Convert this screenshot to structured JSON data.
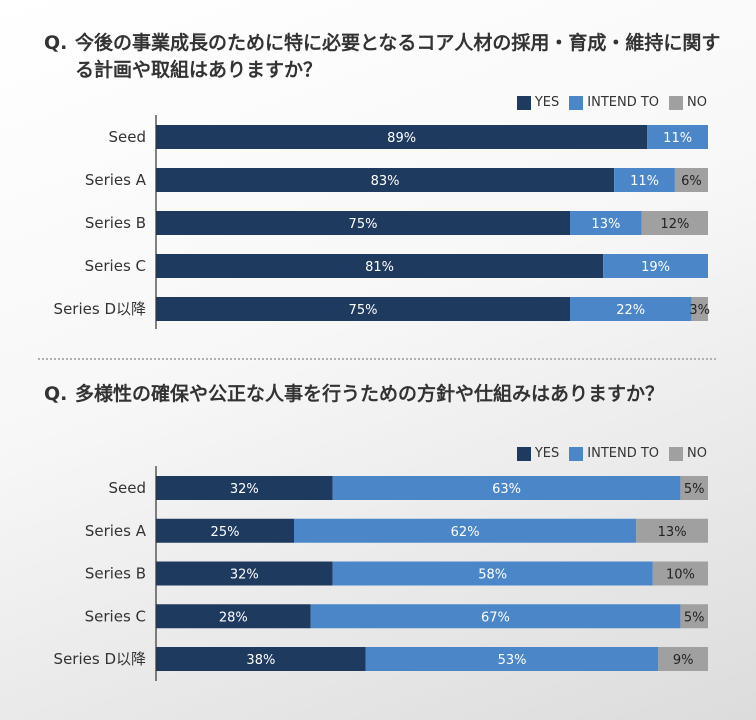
{
  "legend": {
    "yes": "YES",
    "intend": "INTEND TO",
    "no": "NO"
  },
  "colors": {
    "yes": "#1f3a5f",
    "intend": "#4a86c8",
    "no": "#a0a0a0"
  },
  "chart_data": [
    {
      "type": "bar",
      "stacked": true,
      "orientation": "horizontal",
      "title_prefix": "Q.",
      "title": "今後の事業成長のために特に必要となるコア人材の採用・育成・維持に関する計画や取組はありますか？",
      "categories": [
        "Seed",
        "Series A",
        "Series B",
        "Series C",
        "Series D以降"
      ],
      "series": [
        {
          "name": "YES",
          "values": [
            89,
            83,
            75,
            81,
            75
          ],
          "labels": [
            "89%",
            "83%",
            "75%",
            "81%",
            "75%"
          ]
        },
        {
          "name": "INTEND TO",
          "values": [
            11,
            11,
            13,
            19,
            22
          ],
          "labels": [
            "11%",
            "11%",
            "13%",
            "19%",
            "22%"
          ]
        },
        {
          "name": "NO",
          "values": [
            0,
            6,
            12,
            0,
            3
          ],
          "labels": [
            "",
            "6%",
            "12%",
            "",
            "3%"
          ]
        }
      ],
      "xlim": [
        0,
        100
      ],
      "legend_position": "top-right"
    },
    {
      "type": "bar",
      "stacked": true,
      "orientation": "horizontal",
      "title_prefix": "Q.",
      "title": "多様性の確保や公正な人事を行うための方針や仕組みはありますか？",
      "categories": [
        "Seed",
        "Series A",
        "Series B",
        "Series C",
        "Series D以降"
      ],
      "series": [
        {
          "name": "YES",
          "values": [
            32,
            25,
            32,
            28,
            38
          ],
          "labels": [
            "32%",
            "25%",
            "32%",
            "28%",
            "38%"
          ]
        },
        {
          "name": "INTEND TO",
          "values": [
            63,
            62,
            58,
            67,
            53
          ],
          "labels": [
            "63%",
            "62%",
            "58%",
            "67%",
            "53%"
          ]
        },
        {
          "name": "NO",
          "values": [
            5,
            13,
            10,
            5,
            9
          ],
          "labels": [
            "5%",
            "13%",
            "10%",
            "5%",
            "9%"
          ]
        }
      ],
      "xlim": [
        0,
        100
      ],
      "legend_position": "top-right"
    }
  ]
}
